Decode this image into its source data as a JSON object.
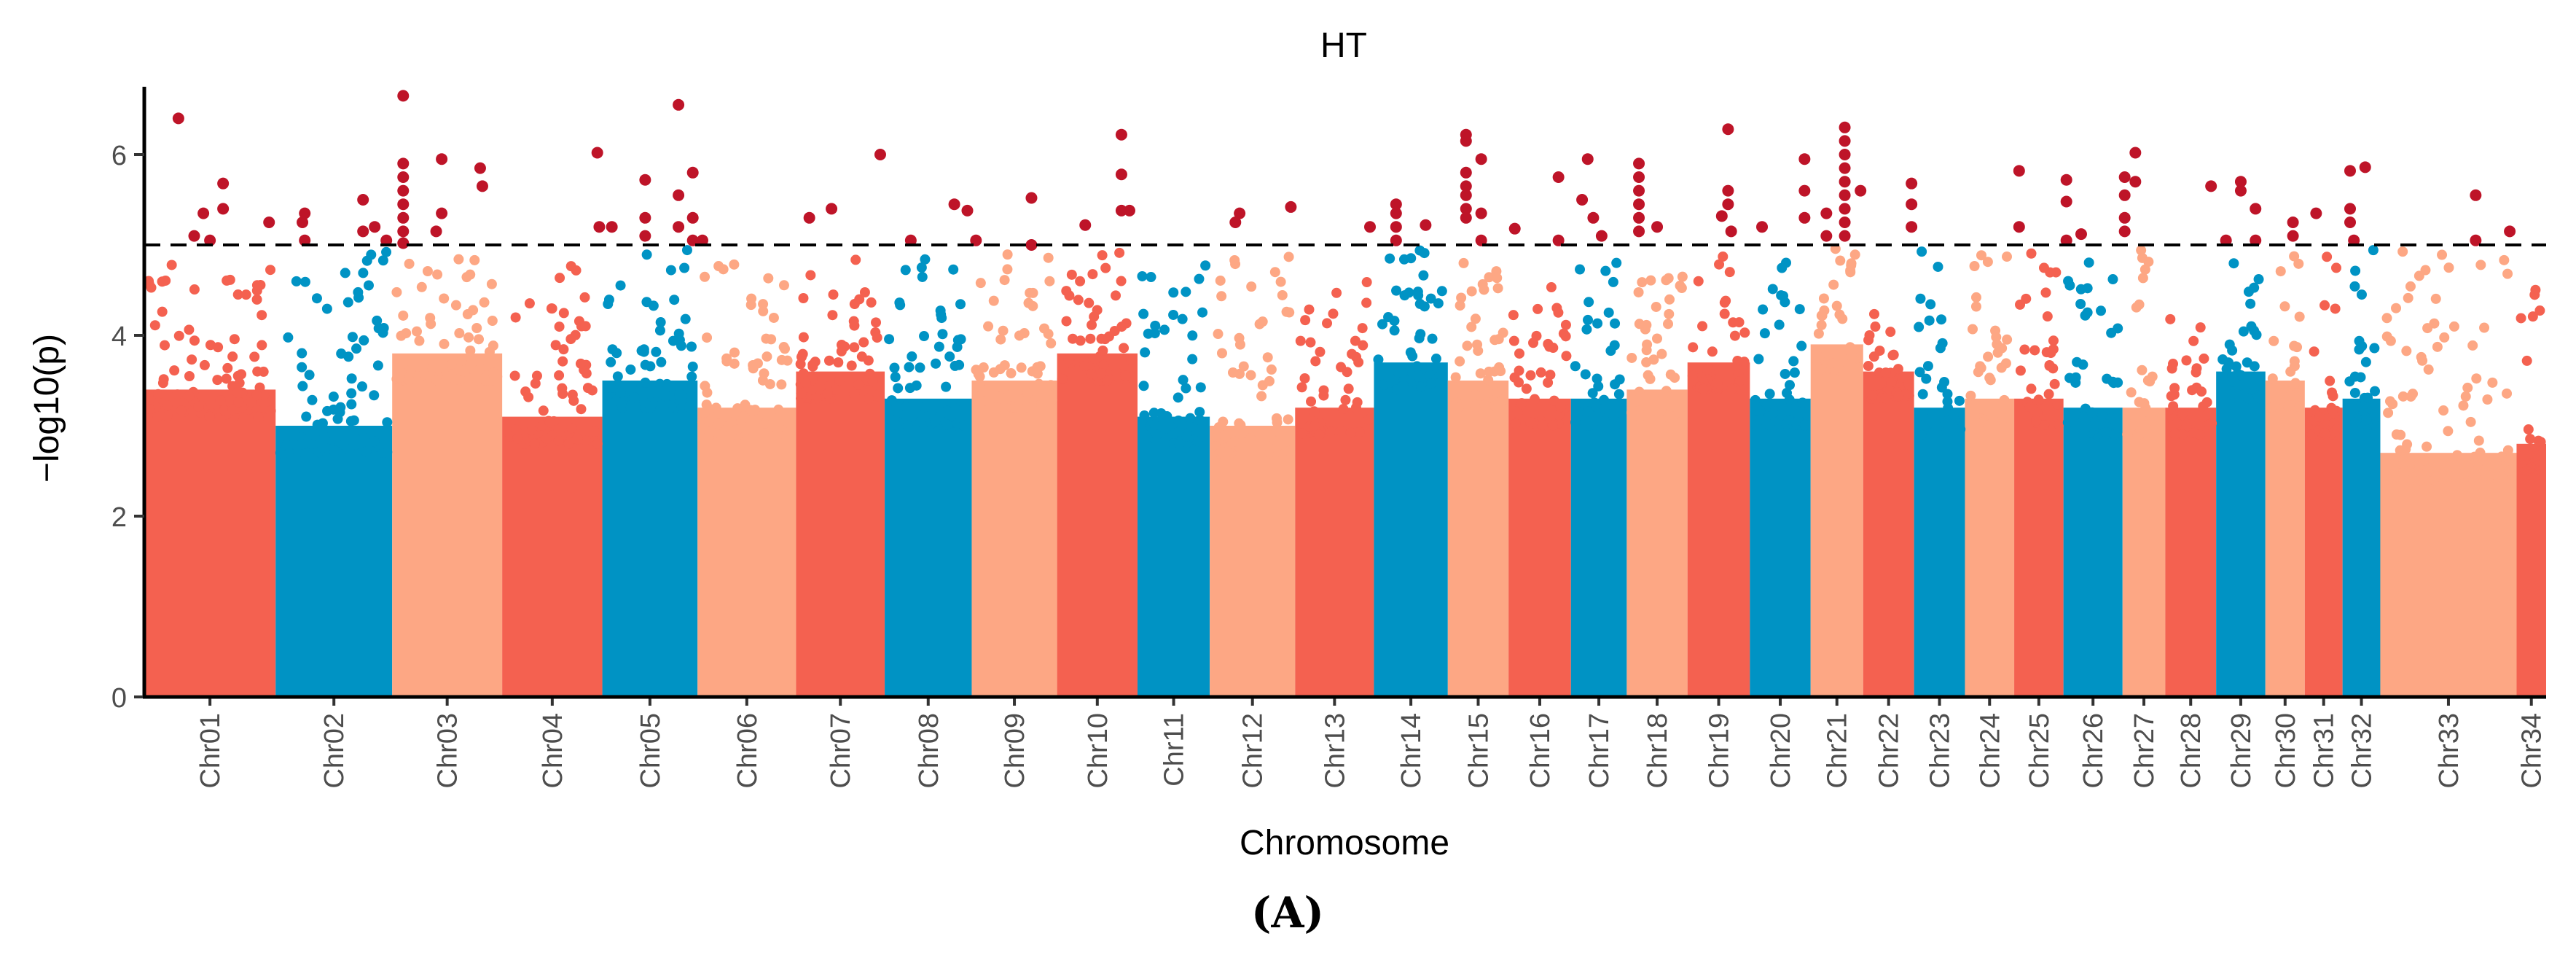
{
  "chart_data": {
    "type": "scatter",
    "subtype": "manhattan",
    "title": "HT",
    "xlabel": "Chromosome",
    "ylabel": "−log10(p)",
    "ylim": [
      0,
      6.75
    ],
    "yticks": [
      0,
      2,
      4,
      6
    ],
    "threshold": 5,
    "threshold_style": "dashed",
    "grid": false,
    "legend": "none",
    "caption": "(A)",
    "colors": {
      "cycle": [
        "#F46150",
        "#0093C4",
        "#FDA784"
      ],
      "significant": "#BE1428",
      "threshold_line": "#000000"
    },
    "chromosomes": [
      {
        "name": "Chr01",
        "length": 80,
        "dense_top": 3.4,
        "max_background": 4.9,
        "hits": [
          [
            0.26,
            6.4
          ],
          [
            0.45,
            5.35
          ],
          [
            0.6,
            5.68
          ],
          [
            0.6,
            5.4
          ],
          [
            0.38,
            5.1
          ],
          [
            0.5,
            5.05
          ],
          [
            0.95,
            5.25
          ]
        ]
      },
      {
        "name": "Chr02",
        "length": 71,
        "dense_top": 3.0,
        "max_background": 4.95,
        "hits": [
          [
            0.25,
            5.35
          ],
          [
            0.23,
            5.25
          ],
          [
            0.25,
            5.05
          ],
          [
            0.75,
            5.5
          ],
          [
            0.75,
            5.15
          ],
          [
            0.85,
            5.2
          ],
          [
            0.95,
            5.05
          ]
        ]
      },
      {
        "name": "Chr03",
        "length": 67,
        "dense_top": 3.8,
        "max_background": 4.95,
        "hits": [
          [
            0.1,
            6.65
          ],
          [
            0.1,
            5.9
          ],
          [
            0.1,
            5.75
          ],
          [
            0.1,
            5.6
          ],
          [
            0.1,
            5.45
          ],
          [
            0.1,
            5.3
          ],
          [
            0.1,
            5.15
          ],
          [
            0.1,
            5.02
          ],
          [
            0.45,
            5.95
          ],
          [
            0.8,
            5.85
          ],
          [
            0.82,
            5.65
          ],
          [
            0.45,
            5.35
          ],
          [
            0.4,
            5.15
          ]
        ]
      },
      {
        "name": "Chr04",
        "length": 61,
        "dense_top": 3.1,
        "max_background": 4.85,
        "hits": [
          [
            0.95,
            6.02
          ],
          [
            0.97,
            5.2
          ]
        ]
      },
      {
        "name": "Chr05",
        "length": 58,
        "dense_top": 3.5,
        "max_background": 4.95,
        "hits": [
          [
            0.1,
            5.2
          ],
          [
            0.45,
            5.72
          ],
          [
            0.45,
            5.3
          ],
          [
            0.45,
            5.1
          ],
          [
            0.8,
            6.55
          ],
          [
            0.8,
            5.55
          ],
          [
            0.8,
            5.2
          ],
          [
            0.95,
            5.8
          ],
          [
            0.95,
            5.3
          ],
          [
            0.95,
            5.05
          ]
        ]
      },
      {
        "name": "Chr06",
        "length": 60,
        "dense_top": 3.2,
        "max_background": 4.9,
        "hits": [
          [
            0.05,
            5.05
          ]
        ]
      },
      {
        "name": "Chr07",
        "length": 54,
        "dense_top": 3.6,
        "max_background": 4.95,
        "hits": [
          [
            0.15,
            5.3
          ],
          [
            0.4,
            5.4
          ],
          [
            0.95,
            6.0
          ]
        ]
      },
      {
        "name": "Chr08",
        "length": 53,
        "dense_top": 3.3,
        "max_background": 4.9,
        "hits": [
          [
            0.3,
            5.05
          ],
          [
            0.8,
            5.45
          ],
          [
            0.95,
            5.38
          ]
        ]
      },
      {
        "name": "Chr09",
        "length": 52,
        "dense_top": 3.5,
        "max_background": 4.95,
        "hits": [
          [
            0.05,
            5.05
          ],
          [
            0.7,
            5.52
          ],
          [
            0.7,
            5.0
          ]
        ]
      },
      {
        "name": "Chr10",
        "length": 49,
        "dense_top": 3.8,
        "max_background": 4.95,
        "hits": [
          [
            0.35,
            5.22
          ],
          [
            0.8,
            6.22
          ],
          [
            0.8,
            5.78
          ],
          [
            0.8,
            5.38
          ],
          [
            0.9,
            5.38
          ]
        ]
      },
      {
        "name": "Chr11",
        "length": 44,
        "dense_top": 3.1,
        "max_background": 4.8,
        "hits": []
      },
      {
        "name": "Chr12",
        "length": 52,
        "dense_top": 3.0,
        "max_background": 4.95,
        "hits": [
          [
            0.3,
            5.25
          ],
          [
            0.35,
            5.35
          ],
          [
            0.95,
            5.42
          ]
        ]
      },
      {
        "name": "Chr13",
        "length": 48,
        "dense_top": 3.2,
        "max_background": 4.75,
        "hits": [
          [
            0.95,
            5.2
          ]
        ]
      },
      {
        "name": "Chr14",
        "length": 45,
        "dense_top": 3.7,
        "max_background": 4.98,
        "hits": [
          [
            0.3,
            5.45
          ],
          [
            0.3,
            5.35
          ],
          [
            0.3,
            5.2
          ],
          [
            0.3,
            5.05
          ],
          [
            0.7,
            5.22
          ]
        ]
      },
      {
        "name": "Chr15",
        "length": 37,
        "dense_top": 3.5,
        "max_background": 4.95,
        "hits": [
          [
            0.3,
            6.22
          ],
          [
            0.3,
            6.15
          ],
          [
            0.3,
            5.8
          ],
          [
            0.3,
            5.65
          ],
          [
            0.3,
            5.55
          ],
          [
            0.3,
            5.4
          ],
          [
            0.3,
            5.3
          ],
          [
            0.55,
            5.95
          ],
          [
            0.55,
            5.35
          ],
          [
            0.55,
            5.05
          ]
        ]
      },
      {
        "name": "Chr16",
        "length": 38,
        "dense_top": 3.3,
        "max_background": 4.6,
        "hits": [
          [
            0.1,
            5.18
          ],
          [
            0.8,
            5.75
          ],
          [
            0.8,
            5.05
          ]
        ]
      },
      {
        "name": "Chr17",
        "length": 34,
        "dense_top": 3.3,
        "max_background": 4.98,
        "hits": [
          [
            0.3,
            5.95
          ],
          [
            0.2,
            5.5
          ],
          [
            0.4,
            5.3
          ],
          [
            0.55,
            5.1
          ]
        ]
      },
      {
        "name": "Chr18",
        "length": 37,
        "dense_top": 3.4,
        "max_background": 4.95,
        "hits": [
          [
            0.2,
            5.9
          ],
          [
            0.2,
            5.75
          ],
          [
            0.2,
            5.6
          ],
          [
            0.2,
            5.45
          ],
          [
            0.2,
            5.3
          ],
          [
            0.2,
            5.15
          ],
          [
            0.5,
            5.2
          ]
        ]
      },
      {
        "name": "Chr19",
        "length": 38,
        "dense_top": 3.7,
        "max_background": 4.95,
        "hits": [
          [
            0.65,
            6.28
          ],
          [
            0.65,
            5.6
          ],
          [
            0.65,
            5.45
          ],
          [
            0.55,
            5.32
          ],
          [
            0.7,
            5.15
          ]
        ]
      },
      {
        "name": "Chr20",
        "length": 37,
        "dense_top": 3.3,
        "max_background": 4.98,
        "hits": [
          [
            0.2,
            5.2
          ],
          [
            0.9,
            5.95
          ],
          [
            0.9,
            5.6
          ],
          [
            0.9,
            5.3
          ]
        ]
      },
      {
        "name": "Chr21",
        "length": 32,
        "dense_top": 3.9,
        "max_background": 4.98,
        "hits": [
          [
            0.3,
            5.35
          ],
          [
            0.3,
            5.1
          ],
          [
            0.65,
            6.3
          ],
          [
            0.65,
            6.15
          ],
          [
            0.65,
            6.0
          ],
          [
            0.65,
            5.85
          ],
          [
            0.65,
            5.7
          ],
          [
            0.65,
            5.55
          ],
          [
            0.65,
            5.4
          ],
          [
            0.65,
            5.25
          ],
          [
            0.65,
            5.1
          ],
          [
            0.95,
            5.6
          ]
        ]
      },
      {
        "name": "Chr22",
        "length": 31,
        "dense_top": 3.6,
        "max_background": 4.6,
        "hits": [
          [
            0.95,
            5.68
          ],
          [
            0.95,
            5.45
          ],
          [
            0.95,
            5.2
          ]
        ]
      },
      {
        "name": "Chr23",
        "length": 31,
        "dense_top": 3.2,
        "max_background": 4.95,
        "hits": []
      },
      {
        "name": "Chr24",
        "length": 30,
        "dense_top": 3.3,
        "max_background": 4.9,
        "hits": []
      },
      {
        "name": "Chr25",
        "length": 30,
        "dense_top": 3.3,
        "max_background": 4.95,
        "hits": [
          [
            0.1,
            5.82
          ],
          [
            0.1,
            5.2
          ]
        ]
      },
      {
        "name": "Chr26",
        "length": 36,
        "dense_top": 3.2,
        "max_background": 4.98,
        "hits": [
          [
            0.05,
            5.72
          ],
          [
            0.05,
            5.48
          ],
          [
            0.05,
            5.05
          ],
          [
            0.3,
            5.12
          ]
        ]
      },
      {
        "name": "Chr27",
        "length": 26,
        "dense_top": 3.2,
        "max_background": 4.98,
        "hits": [
          [
            0.05,
            5.75
          ],
          [
            0.05,
            5.55
          ],
          [
            0.05,
            5.3
          ],
          [
            0.05,
            5.15
          ],
          [
            0.3,
            6.02
          ],
          [
            0.3,
            5.7
          ]
        ]
      },
      {
        "name": "Chr28",
        "length": 31,
        "dense_top": 3.2,
        "max_background": 4.4,
        "hits": [
          [
            0.9,
            5.65
          ]
        ]
      },
      {
        "name": "Chr29",
        "length": 30,
        "dense_top": 3.6,
        "max_background": 4.98,
        "hits": [
          [
            0.5,
            5.7
          ],
          [
            0.5,
            5.6
          ],
          [
            0.2,
            5.05
          ],
          [
            0.8,
            5.4
          ],
          [
            0.8,
            5.05
          ]
        ]
      },
      {
        "name": "Chr30",
        "length": 24,
        "dense_top": 3.5,
        "max_background": 4.95,
        "hits": [
          [
            0.7,
            5.25
          ],
          [
            0.7,
            5.1
          ]
        ]
      },
      {
        "name": "Chr31",
        "length": 23,
        "dense_top": 3.2,
        "max_background": 4.95,
        "hits": [
          [
            0.3,
            5.35
          ]
        ]
      },
      {
        "name": "Chr32",
        "length": 23,
        "dense_top": 3.3,
        "max_background": 4.98,
        "hits": [
          [
            0.2,
            5.82
          ],
          [
            0.2,
            5.4
          ],
          [
            0.2,
            5.25
          ],
          [
            0.3,
            5.05
          ],
          [
            0.6,
            5.86
          ]
        ]
      },
      {
        "name": "Chr33",
        "length": 83,
        "dense_top": 2.7,
        "max_background": 4.95,
        "hits": [
          [
            0.7,
            5.55
          ],
          [
            0.7,
            5.05
          ],
          [
            0.95,
            5.15
          ]
        ]
      },
      {
        "name": "Chr34",
        "length": 18,
        "dense_top": 2.8,
        "max_background": 4.95,
        "hits": []
      }
    ]
  }
}
